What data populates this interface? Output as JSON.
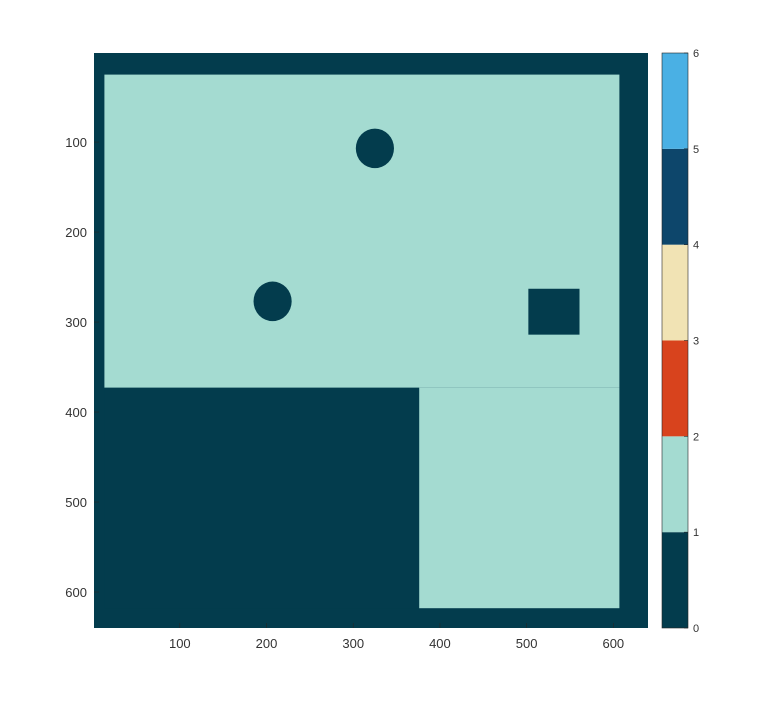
{
  "chart_data": {
    "type": "heatmap",
    "title": "",
    "xlabel": "",
    "ylabel": "",
    "xlim": [
      1,
      640
    ],
    "ylim": [
      640,
      1
    ],
    "xticks": [
      100,
      200,
      300,
      400,
      500,
      600
    ],
    "yticks": [
      100,
      200,
      300,
      400,
      500,
      600
    ],
    "colorbar": {
      "range": [
        0,
        6
      ],
      "ticks": [
        0,
        1,
        2,
        3,
        4,
        5,
        6
      ],
      "colors": [
        "#033c4d",
        "#a4dbd1",
        "#d8431d",
        "#f1e3b4",
        "#0d466b",
        "#4ab0e4"
      ]
    },
    "background_value": 0,
    "regions": [
      {
        "name": "free-space",
        "shape": "rect",
        "value": 1,
        "x": [
          13,
          607
        ],
        "y": [
          25,
          373
        ]
      },
      {
        "name": "free-space-lower-right",
        "shape": "rect",
        "value": 1,
        "x": [
          376,
          607
        ],
        "y": [
          373,
          618
        ]
      },
      {
        "name": "obstacle-lower-left",
        "shape": "rect",
        "value": 0,
        "x": [
          13,
          376
        ],
        "y": [
          373,
          618
        ]
      },
      {
        "name": "obstacle-square",
        "shape": "rect",
        "value": 0,
        "x": [
          502,
          561
        ],
        "y": [
          263,
          314
        ]
      },
      {
        "name": "obstacle-circle-1",
        "shape": "circle",
        "value": 0,
        "cx": 325,
        "cy": 107,
        "r": 22
      },
      {
        "name": "obstacle-circle-2",
        "shape": "circle",
        "value": 0,
        "cx": 207,
        "cy": 277,
        "r": 22
      }
    ]
  }
}
